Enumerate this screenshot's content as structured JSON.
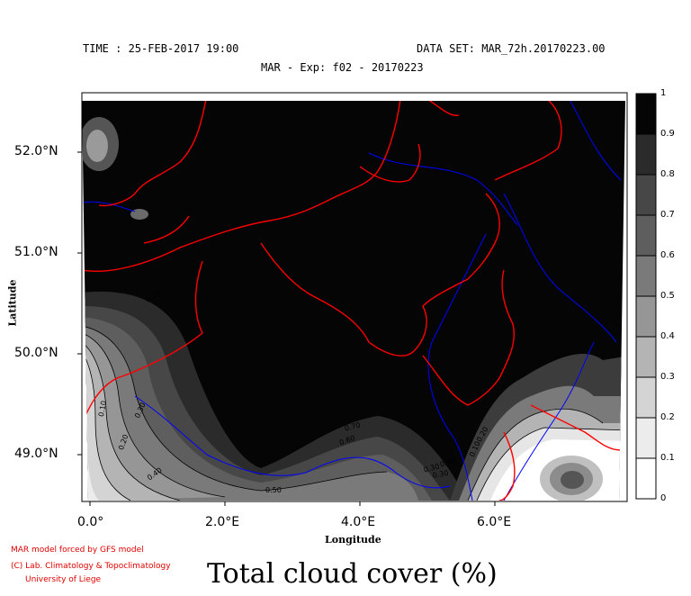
{
  "header": {
    "time": "TIME : 25-FEB-2017 19:00",
    "dataset": "DATA SET: MAR_72h.20170223.00",
    "experiment": "MAR - Exp: f02 - 20170223"
  },
  "axes": {
    "y_ticks": [
      "52.0°N",
      "51.0°N",
      "50.0°N",
      "49.0°N"
    ],
    "x_ticks": [
      "0.0°",
      "2.0°E",
      "4.0°E",
      "6.0°E"
    ],
    "xlabel": "Longitude",
    "ylabel": "Latitude"
  },
  "colorbar": {
    "ticks": [
      "1",
      "0.9",
      "0.8",
      "0.7",
      "0.6",
      "0.5",
      "0.4",
      "0.3",
      "0.2",
      "0.1",
      "0"
    ]
  },
  "contour_labels": [
    "0.10",
    "0.20",
    "0.30",
    "0.40",
    "0.50",
    "0.60",
    "0.70",
    "0.20",
    "0.10",
    "0.20",
    "0.30",
    "0.40",
    "0.30"
  ],
  "credits": [
    "MAR model forced by GFS model",
    "(C) Lab. Climatology & Topoclimatology",
    "University of Liege"
  ],
  "title": "Total cloud cover (%)",
  "colors": {
    "border": "#ff0000",
    "river": "#0000ff",
    "cloud_full": "#000000"
  }
}
